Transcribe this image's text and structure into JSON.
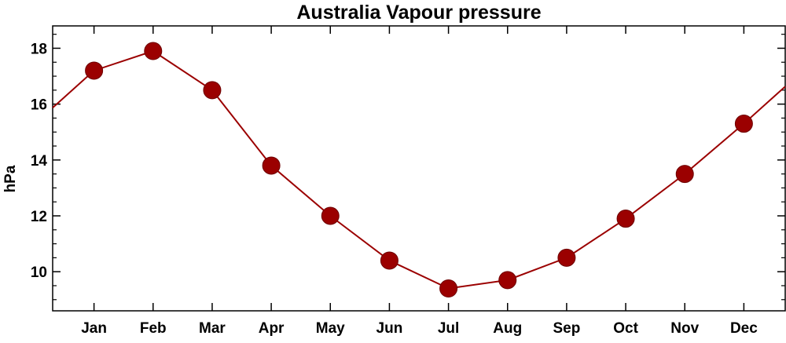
{
  "chart_data": {
    "type": "line",
    "title": "Australia Vapour pressure",
    "xlabel": "",
    "ylabel": "hPa",
    "categories": [
      "Jan",
      "Feb",
      "Mar",
      "Apr",
      "May",
      "Jun",
      "Jul",
      "Aug",
      "Sep",
      "Oct",
      "Nov",
      "Dec"
    ],
    "series": [
      {
        "values": [
          17.2,
          17.9,
          16.5,
          13.8,
          12.0,
          10.4,
          9.4,
          9.7,
          10.5,
          11.9,
          13.5,
          15.3
        ]
      }
    ],
    "ylim": [
      8.6,
      18.8
    ],
    "xlim": [
      0.3,
      12.7
    ],
    "yticks": [
      10,
      12,
      14,
      16,
      18
    ],
    "ytick_labels": [
      "10",
      "12",
      "14",
      "16",
      "18"
    ],
    "y_minor_step": 0.5,
    "grid": false,
    "legend": "none",
    "colors": {
      "series": "#9b0000",
      "axes": "#000000",
      "background": "#ffffff"
    }
  }
}
